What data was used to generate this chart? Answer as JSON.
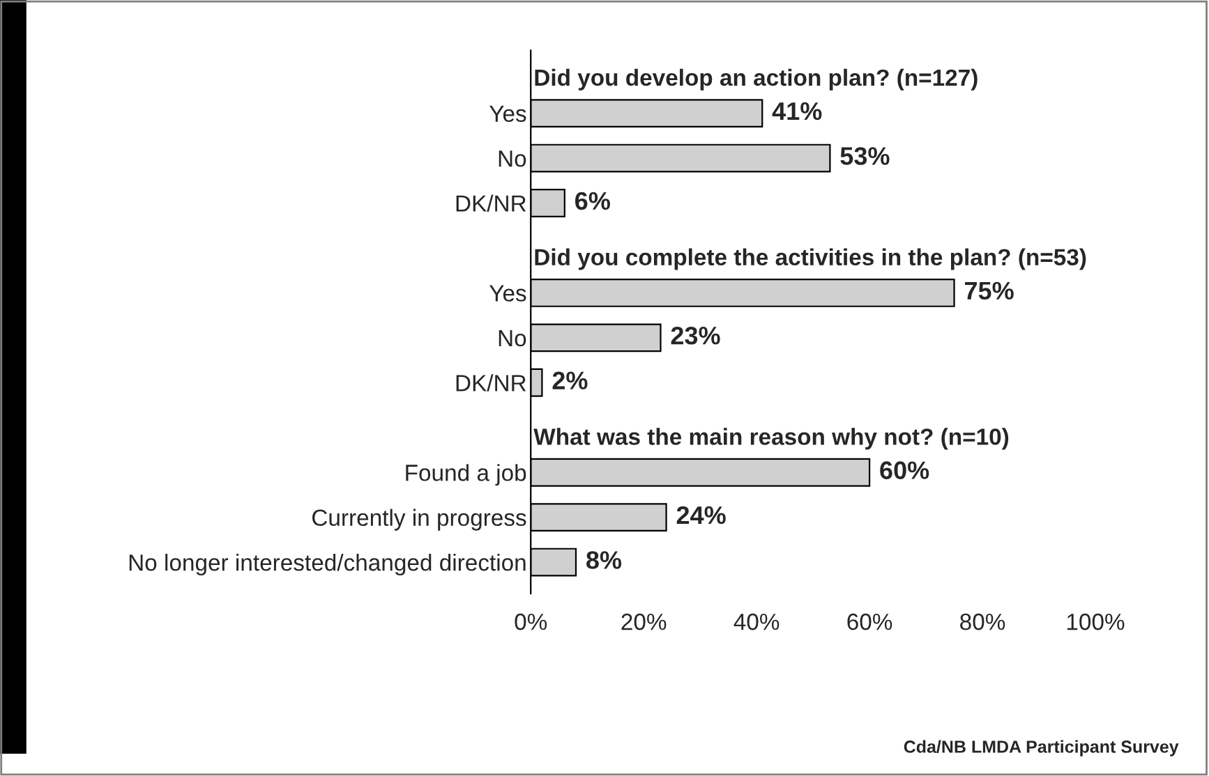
{
  "chart_data": {
    "type": "bar",
    "orientation": "horizontal",
    "categories": [
      "Yes",
      "No",
      "DK/NR",
      "Yes",
      "No",
      "DK/NR",
      "Found a job",
      "Currently in progress",
      "No longer interested/changed direction"
    ],
    "values": [
      41,
      53,
      6,
      75,
      23,
      2,
      60,
      24,
      8
    ],
    "value_labels": [
      "41%",
      "53%",
      "6%",
      "75%",
      "23%",
      "2%",
      "60%",
      "24%",
      "8%"
    ],
    "color": "#d0d0d0",
    "xlim": [
      0,
      100
    ],
    "xticks": [
      {
        "value": 0,
        "label": "0%"
      },
      {
        "value": 20,
        "label": "20%"
      },
      {
        "value": 40,
        "label": "40%"
      },
      {
        "value": 60,
        "label": "60%"
      },
      {
        "value": 80,
        "label": "80%"
      },
      {
        "value": 100,
        "label": "100%"
      }
    ],
    "grid": false,
    "legend": false,
    "annotations": [
      "Did you develop an action plan? (n=127)",
      "Did you complete the activities in the plan? (n=53)",
      "What was the main reason why not? (n=10)",
      "Cda/NB LMDA Participant Survey"
    ]
  }
}
